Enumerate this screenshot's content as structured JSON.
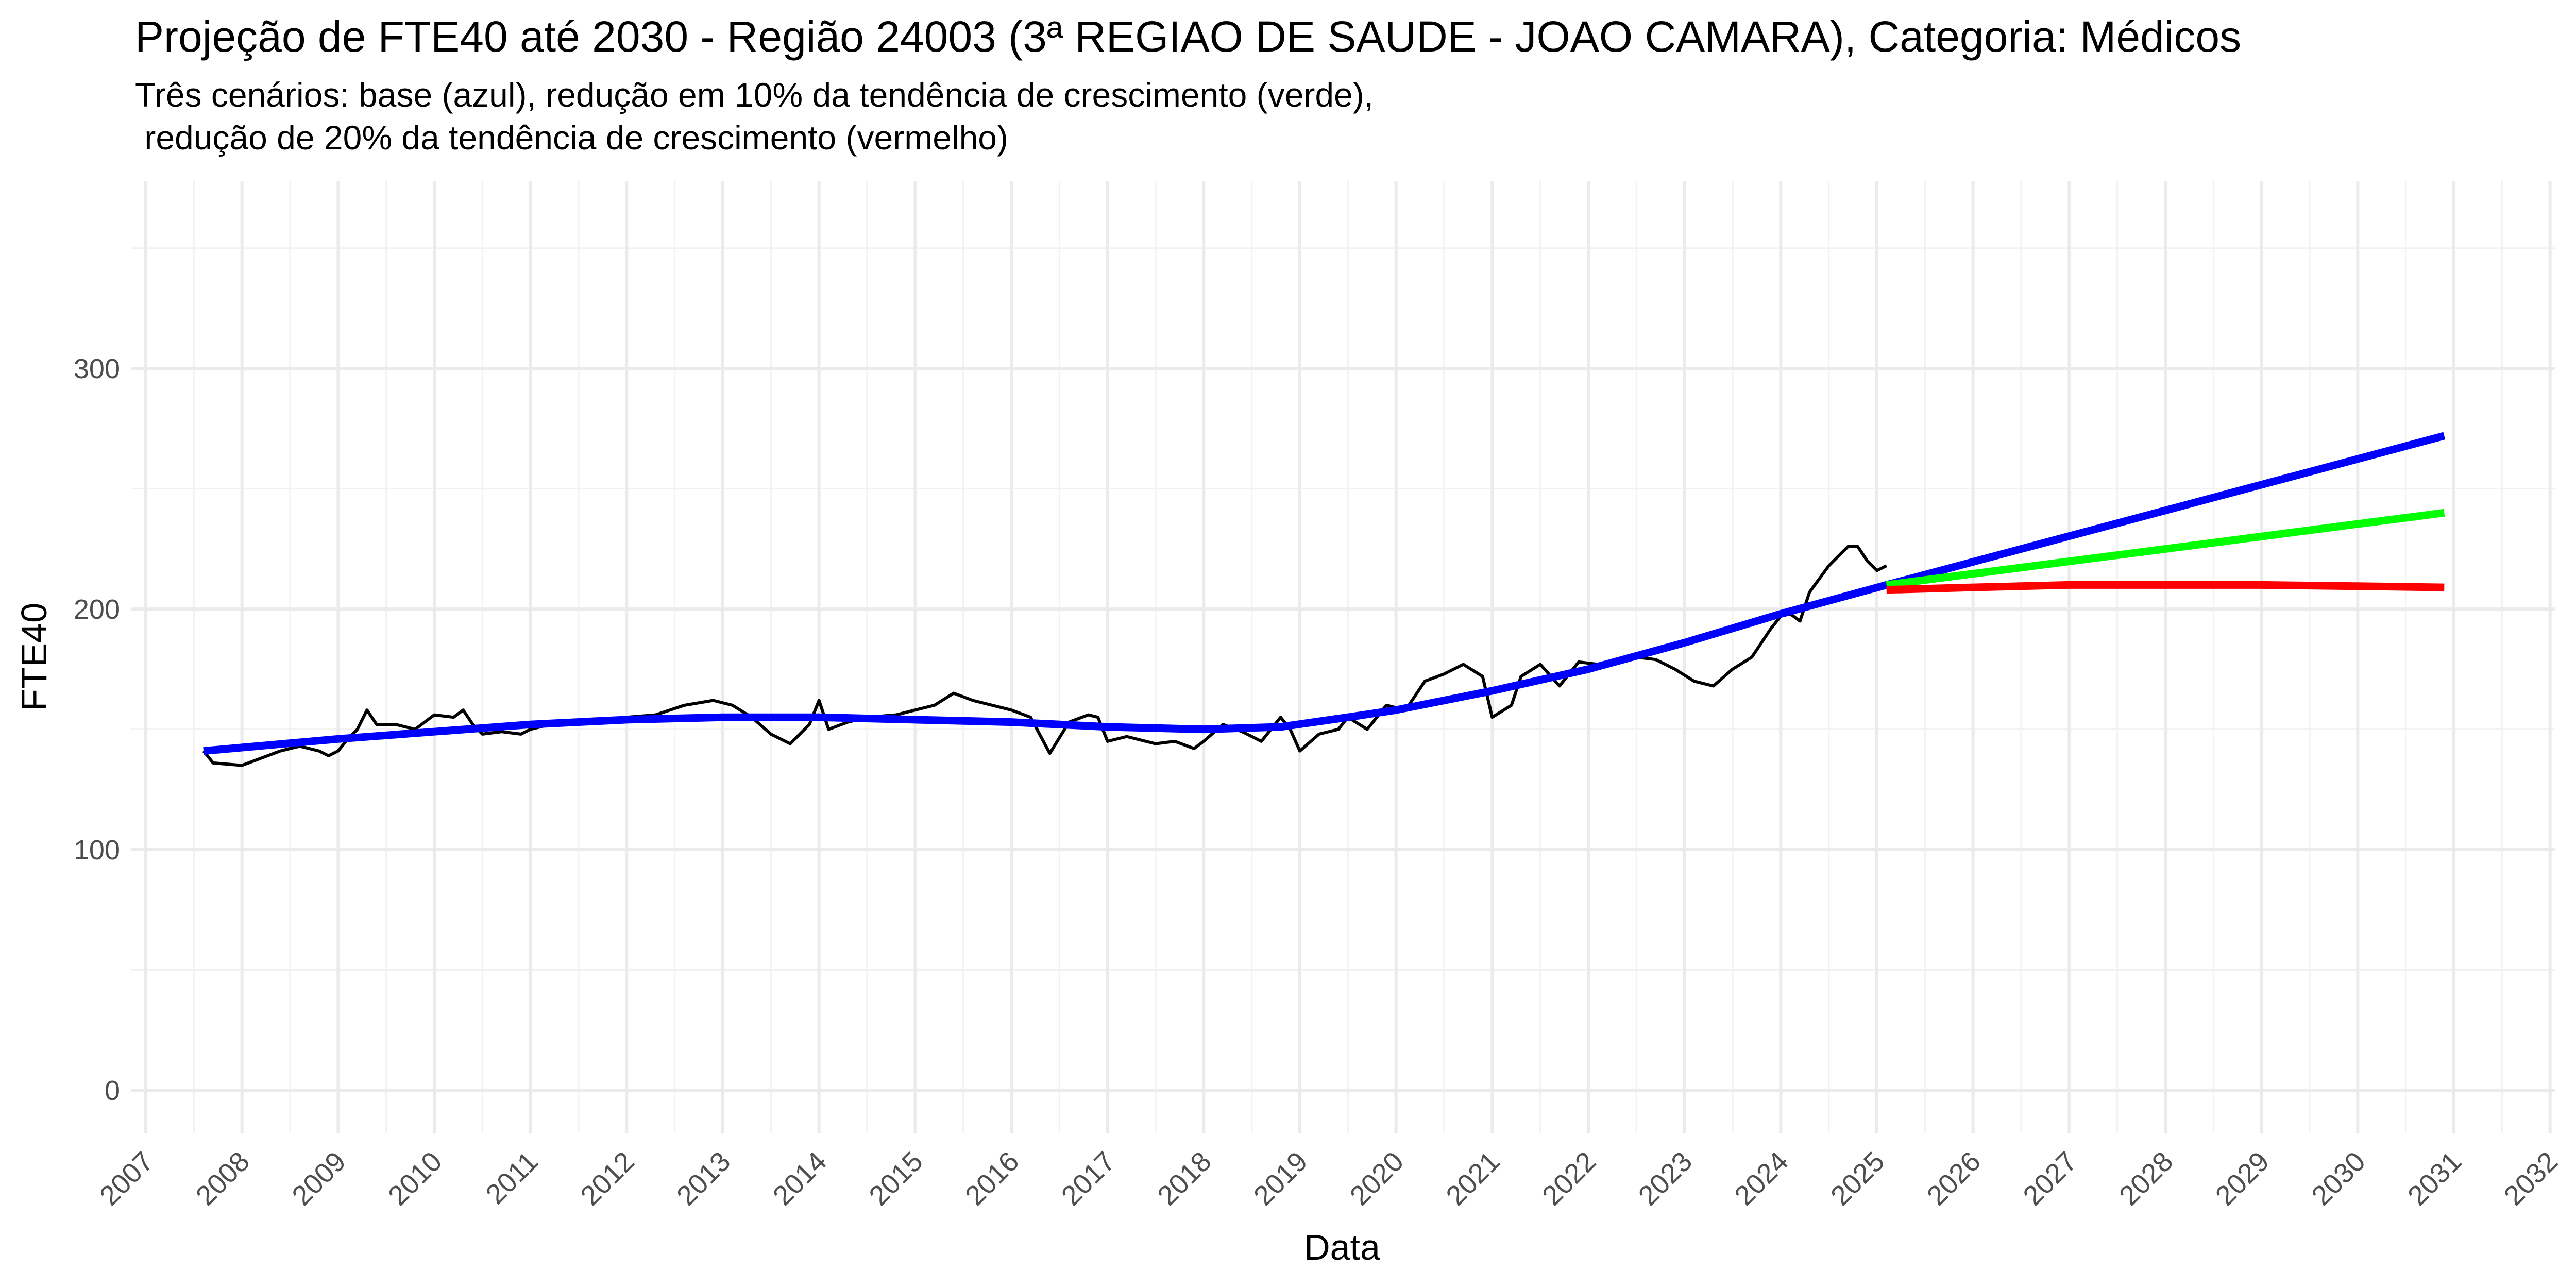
{
  "chart_data": {
    "type": "line",
    "title": "Projeção de FTE40 até 2030 - Região 24003 (3ª REGIAO DE SAUDE - JOAO CAMARA), Categoria: Médicos",
    "subtitle": [
      "Três cenários: base (azul), redução em 10% da tendência de crescimento (verde),",
      " redução de 20% da tendência de crescimento (vermelho)"
    ],
    "x_label": "Data",
    "y_label": "FTE40",
    "xlim": [
      2006.85,
      2032.05
    ],
    "xticks": [
      2007,
      2008,
      2009,
      2010,
      2011,
      2012,
      2013,
      2014,
      2015,
      2016,
      2017,
      2018,
      2019,
      2020,
      2021,
      2022,
      2023,
      2024,
      2025,
      2026,
      2027,
      2028,
      2029,
      2030,
      2031,
      2032
    ],
    "ylim": [
      -18,
      378
    ],
    "yticks": [
      0,
      100,
      200,
      300
    ],
    "grid": true,
    "series": [
      {
        "color": "#000000",
        "x": [
          2007.6,
          2007.7,
          2008.0,
          2008.2,
          2008.4,
          2008.6,
          2008.8,
          2008.9,
          2009.0,
          2009.1,
          2009.2,
          2009.3,
          2009.4,
          2009.6,
          2009.8,
          2010.0,
          2010.2,
          2010.3,
          2010.4,
          2010.5,
          2010.7,
          2010.9,
          2011.0,
          2011.2,
          2011.5,
          2011.8,
          2012.0,
          2012.3,
          2012.6,
          2012.9,
          2013.1,
          2013.3,
          2013.5,
          2013.7,
          2013.9,
          2014.0,
          2014.1,
          2014.3,
          2014.5,
          2014.8,
          2015.0,
          2015.2,
          2015.4,
          2015.6,
          2015.8,
          2016.0,
          2016.2,
          2016.4,
          2016.6,
          2016.8,
          2016.9,
          2017.0,
          2017.2,
          2017.5,
          2017.7,
          2017.9,
          2018.0,
          2018.2,
          2018.4,
          2018.6,
          2018.8,
          2018.9,
          2019.0,
          2019.2,
          2019.4,
          2019.5,
          2019.7,
          2019.9,
          2020.1,
          2020.3,
          2020.5,
          2020.7,
          2020.9,
          2021.0,
          2021.2,
          2021.3,
          2021.5,
          2021.7,
          2021.9,
          2022.1,
          2022.3,
          2022.5,
          2022.7,
          2022.9,
          2023.1,
          2023.3,
          2023.5,
          2023.7,
          2023.9,
          2024.0,
          2024.1,
          2024.2,
          2024.3,
          2024.5,
          2024.7,
          2024.8,
          2024.9,
          2025.0,
          2025.1
        ],
        "values": [
          141,
          136,
          135,
          138,
          141,
          143,
          141,
          139,
          141,
          146,
          150,
          158,
          152,
          152,
          150,
          156,
          155,
          158,
          152,
          148,
          149,
          148,
          150,
          152,
          153,
          154,
          155,
          156,
          160,
          162,
          160,
          155,
          148,
          144,
          152,
          162,
          150,
          153,
          155,
          156,
          158,
          160,
          165,
          162,
          160,
          158,
          155,
          140,
          153,
          156,
          155,
          145,
          147,
          144,
          145,
          142,
          145,
          152,
          149,
          145,
          155,
          150,
          141,
          148,
          150,
          155,
          150,
          160,
          158,
          170,
          173,
          177,
          172,
          155,
          160,
          172,
          177,
          168,
          178,
          177,
          178,
          180,
          179,
          175,
          170,
          168,
          175,
          180,
          192,
          197,
          198,
          195,
          207,
          218,
          226,
          226,
          220,
          216,
          218
        ]
      },
      {
        "color": "#0000ff",
        "x": [
          2007.6,
          2009,
          2010,
          2011,
          2012,
          2013,
          2014,
          2015,
          2016,
          2017,
          2018,
          2018.8,
          2019.5,
          2020,
          2021,
          2022,
          2023,
          2024,
          2025.1,
          2028,
          2030.9
        ],
        "values": [
          141,
          146,
          149,
          152,
          154,
          155,
          155,
          154,
          153,
          151,
          150,
          151,
          155,
          158,
          166,
          175,
          186,
          198,
          210,
          241,
          272
        ]
      },
      {
        "color": "#00ff00",
        "x": [
          2025.1,
          2028,
          2030.9
        ],
        "values": [
          210,
          225,
          240
        ]
      },
      {
        "color": "#ff0000",
        "x": [
          2025.1,
          2026,
          2027,
          2028,
          2029,
          2030,
          2030.9
        ],
        "values": [
          208,
          209,
          210,
          210,
          210,
          209.5,
          209
        ]
      }
    ]
  }
}
